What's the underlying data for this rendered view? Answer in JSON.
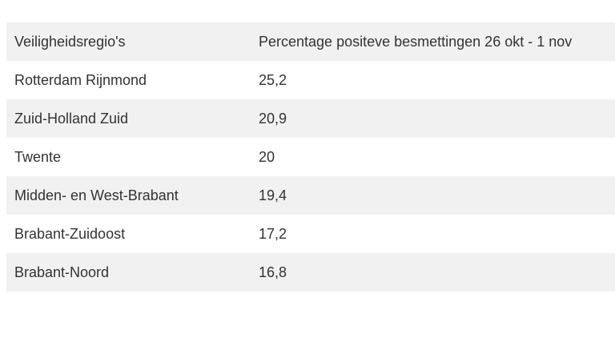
{
  "table": {
    "headers": [
      "Veiligheidsregio's",
      "Percentage positeve besmettingen 26 okt - 1 nov"
    ],
    "rows": [
      [
        "Rotterdam Rijnmond",
        "25,2"
      ],
      [
        "Zuid-Holland Zuid",
        "20,9"
      ],
      [
        "Twente",
        "20"
      ],
      [
        "Midden- en West-Brabant",
        "19,4"
      ],
      [
        "Brabant-Zuidoost",
        "17,2"
      ],
      [
        "Brabant-Noord",
        "16,8"
      ]
    ]
  },
  "colors": {
    "row_shade": "#f1f1f1",
    "row_plain": "#ffffff",
    "text": "#333333"
  }
}
